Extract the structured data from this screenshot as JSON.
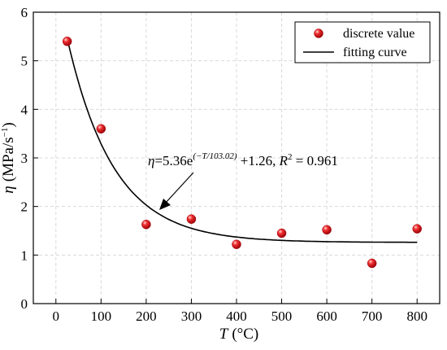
{
  "chart_data": {
    "type": "scatter",
    "xlabel_var": "T",
    "xlabel_unit": "(°C)",
    "ylabel_var": "η",
    "ylabel_unit": "(MPa/s",
    "ylabel_unit_sup": "−1",
    "ylabel_unit_close": ")",
    "xlim": [
      -50,
      850
    ],
    "ylim": [
      0,
      6
    ],
    "xticks": [
      0,
      100,
      200,
      300,
      400,
      500,
      600,
      700,
      800
    ],
    "yticks": [
      0,
      1,
      2,
      3,
      4,
      5,
      6
    ],
    "grid": true,
    "legend_position": "top-right",
    "series": [
      {
        "name": "discrete value",
        "kind": "points",
        "color": "#e8101a",
        "x": [
          25,
          100,
          200,
          300,
          400,
          500,
          600,
          700,
          800
        ],
        "y": [
          5.4,
          3.6,
          1.63,
          1.74,
          1.22,
          1.45,
          1.52,
          0.83,
          1.54
        ]
      },
      {
        "name": "fitting curve",
        "kind": "line",
        "color": "#000000",
        "equation": {
          "a": 5.36,
          "t": 103.02,
          "c": 1.26
        },
        "x_range": [
          25,
          800
        ]
      }
    ],
    "annotation": {
      "eta": "η",
      "eq_main": "=5.36e",
      "eq_exp": "(−T/103.02)",
      "eq_tail": " +1.26, ",
      "r2_var": "R",
      "r2_sup": "2",
      "r2_value": " = 0.961",
      "arrow_target_x": 225
    }
  }
}
